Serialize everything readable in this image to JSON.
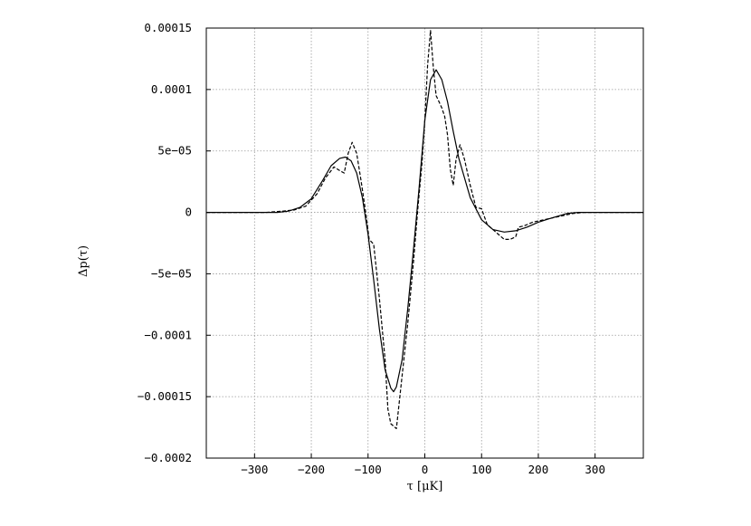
{
  "chart_data": {
    "type": "line",
    "xlabel": "τ [μK]",
    "ylabel": "Δp(τ)",
    "xlim": [
      -385,
      385
    ],
    "ylim": [
      -0.0002,
      0.00015
    ],
    "grid": true,
    "legend": "none",
    "x_ticks": [
      -300,
      -200,
      -100,
      0,
      100,
      200,
      300
    ],
    "x_tick_labels": [
      "−300",
      "−200",
      "−100",
      "0",
      "100",
      "200",
      "300"
    ],
    "y_ticks": [
      0.00015,
      0.0001,
      5e-05,
      0,
      -5e-05,
      -0.0001,
      -0.00015,
      -0.0002
    ],
    "y_tick_labels": [
      "0.00015",
      "0.0001",
      "5e−05",
      "0",
      "−5e−05",
      "−0.0001",
      "−0.00015",
      "−0.0002"
    ],
    "series": [
      {
        "style": "solid",
        "color": "#000000",
        "x": [
          -385,
          -300,
          -260,
          -240,
          -220,
          -200,
          -180,
          -165,
          -150,
          -140,
          -130,
          -120,
          -110,
          -100,
          -90,
          -80,
          -70,
          -60,
          -55,
          -50,
          -40,
          -30,
          -20,
          -10,
          0,
          10,
          20,
          30,
          40,
          50,
          60,
          80,
          100,
          120,
          140,
          160,
          180,
          200,
          220,
          250,
          270,
          300,
          385
        ],
        "y": [
          0,
          0,
          0,
          1e-06,
          4e-06,
          1.1e-05,
          2.6e-05,
          3.8e-05,
          4.4e-05,
          4.5e-05,
          4.2e-05,
          3.2e-05,
          1.2e-05,
          -1.8e-05,
          -5.5e-05,
          -9.5e-05,
          -0.000128,
          -0.000143,
          -0.000146,
          -0.000142,
          -0.00012,
          -7.8e-05,
          -3e-05,
          2e-05,
          7.5e-05,
          0.000108,
          0.000116,
          0.000108,
          9e-05,
          6.6e-05,
          4.4e-05,
          1.2e-05,
          -6e-06,
          -1.4e-05,
          -1.6e-05,
          -1.5e-05,
          -1.2e-05,
          -8e-06,
          -5e-06,
          -1e-06,
          0,
          0,
          0
        ]
      },
      {
        "style": "dashed",
        "color": "#000000",
        "x": [
          -385,
          -280,
          -250,
          -230,
          -210,
          -190,
          -175,
          -160,
          -150,
          -142,
          -135,
          -128,
          -120,
          -112,
          -105,
          -98,
          -90,
          -80,
          -70,
          -65,
          -60,
          -55,
          -50,
          -40,
          -30,
          -20,
          -12,
          -5,
          0,
          5,
          10,
          15,
          20,
          25,
          30,
          35,
          40,
          45,
          50,
          55,
          62,
          70,
          80,
          90,
          100,
          110,
          120,
          130,
          140,
          150,
          160,
          165,
          175,
          190,
          210,
          230,
          260,
          280,
          385
        ],
        "y": [
          0,
          0,
          1e-06,
          2e-06,
          5e-06,
          1.5e-05,
          2.8e-05,
          3.7e-05,
          3.4e-05,
          3.2e-05,
          4.8e-05,
          5.7e-05,
          4.8e-05,
          2.5e-05,
          3e-06,
          -2.2e-05,
          -2.6e-05,
          -7e-05,
          -0.00012,
          -0.00016,
          -0.000172,
          -0.000174,
          -0.000176,
          -0.000133,
          -9e-05,
          -4e-05,
          5e-06,
          4e-05,
          7.5e-05,
          0.00012,
          0.000148,
          0.000118,
          9.5e-05,
          9e-05,
          8.5e-05,
          7.8e-05,
          6.3e-05,
          3.5e-05,
          2.2e-05,
          4.3e-05,
          5.5e-05,
          4.3e-05,
          2.2e-05,
          4e-06,
          3e-06,
          -1e-05,
          -1.4e-05,
          -1.8e-05,
          -2.2e-05,
          -2.2e-05,
          -2e-05,
          -1.2e-05,
          -1.1e-05,
          -8e-06,
          -6e-06,
          -4e-06,
          -1e-06,
          0,
          0
        ]
      }
    ]
  }
}
